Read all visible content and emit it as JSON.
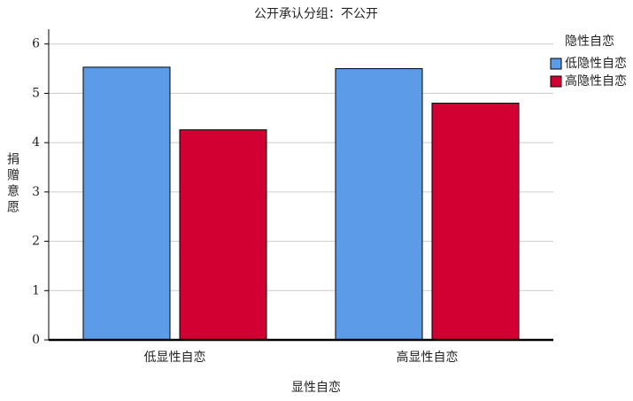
{
  "chart_data": {
    "type": "bar",
    "title": "公开承认分组：不公开",
    "x_label": "显性自恋",
    "y_label": "捐赠意愿",
    "legend_title": "隐性自恋",
    "categories": [
      "低显性自恋",
      "高显性自恋"
    ],
    "series": [
      {
        "name": "低隐性自恋",
        "color": "#5b9be8",
        "values": [
          5.53,
          5.5
        ]
      },
      {
        "name": "高隐性自恋",
        "color": "#d20032",
        "values": [
          4.26,
          4.8
        ]
      }
    ],
    "ylim": [
      0,
      6.3
    ],
    "yticks": [
      0,
      1,
      2,
      3,
      4,
      5,
      6
    ],
    "grid": true,
    "legend": "right"
  }
}
